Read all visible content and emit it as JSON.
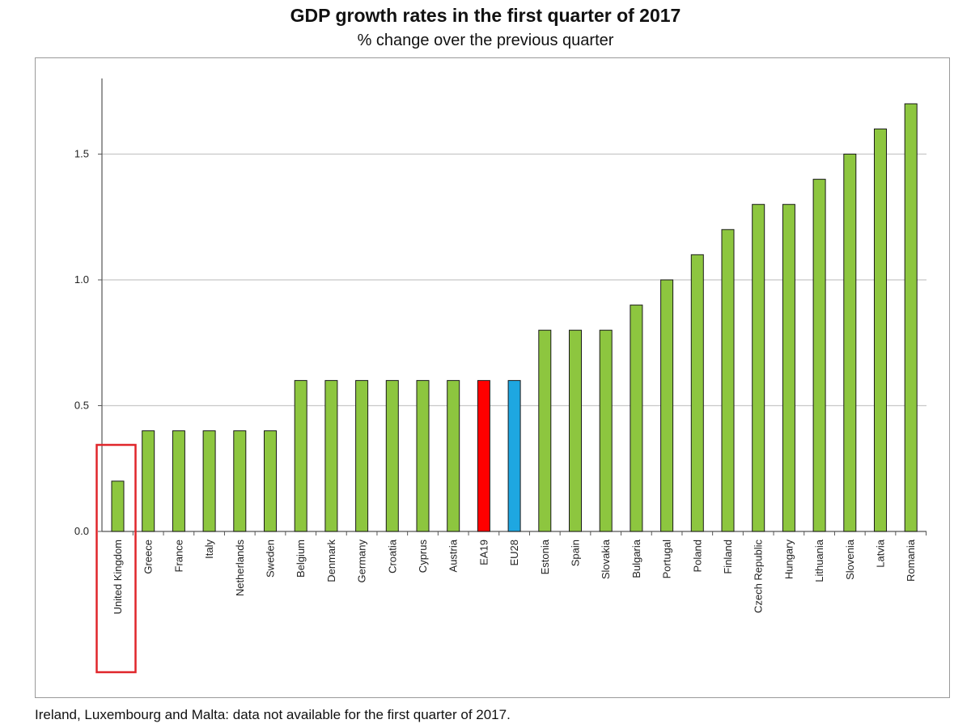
{
  "chart_data": {
    "type": "bar",
    "title": "GDP growth rates in the first quarter of 2017",
    "subtitle": "% change over the previous quarter",
    "footnote": "Ireland, Luxembourg and Malta: data not available for the first quarter of 2017.",
    "categories": [
      "United Kingdom",
      "Greece",
      "France",
      "Italy",
      "Netherlands",
      "Sweden",
      "Belgium",
      "Denmark",
      "Germany",
      "Croatia",
      "Cyprus",
      "Austria",
      "EA19",
      "EU28",
      "Estonia",
      "Spain",
      "Slovakia",
      "Bulgaria",
      "Portugal",
      "Poland",
      "Finland",
      "Czech Republic",
      "Hungary",
      "Lithuania",
      "Slovenia",
      "Latvia",
      "Romania"
    ],
    "values": [
      0.2,
      0.4,
      0.4,
      0.4,
      0.4,
      0.4,
      0.6,
      0.6,
      0.6,
      0.6,
      0.6,
      0.6,
      0.6,
      0.6,
      0.8,
      0.8,
      0.8,
      0.9,
      1.0,
      1.1,
      1.2,
      1.3,
      1.3,
      1.4,
      1.5,
      1.6,
      1.7
    ],
    "y_ticks": [
      "0.0",
      "0.5",
      "1.0",
      "1.5"
    ],
    "ylim": [
      0,
      1.8
    ],
    "grid": true,
    "colors": {
      "default": "#8dc63f",
      "EA19": "#ff0000",
      "EU28": "#1ea7e1",
      "bar_outline": "#1a1a1a",
      "highlight_box": "#e0262b"
    },
    "highlighted_category": "United Kingdom"
  }
}
